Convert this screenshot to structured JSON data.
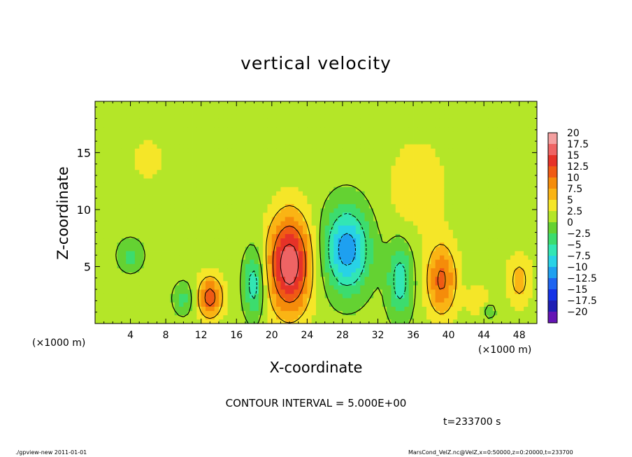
{
  "title": "vertical velocity",
  "contour_interval": "CONTOUR INTERVAL = 5.000E+00",
  "time_label": "t=233700 s",
  "footer": {
    "left": "./gpview-new  2011-01-01",
    "right": "MarsCond_VelZ.nc@VelZ,x=0:50000,z=0:20000,t=233700"
  },
  "chart_data": {
    "type": "heatmap",
    "title": "vertical velocity",
    "xlabel": "X-coordinate",
    "ylabel": "Z-coordinate",
    "x_unit": "(×1000 m)",
    "xlim": [
      0,
      50
    ],
    "ylim": [
      0,
      19.5
    ],
    "x_ticks": [
      4,
      8,
      12,
      16,
      20,
      24,
      28,
      32,
      36,
      40,
      44,
      48
    ],
    "y_ticks": [
      5,
      10,
      15
    ],
    "contour_interval": 5,
    "colorbar": {
      "labels": [
        "20",
        "17.5",
        "15",
        "12.5",
        "10",
        "7.5",
        "5",
        "2.5",
        "0",
        "−2.5",
        "−5",
        "−7.5",
        "−10",
        "−12.5",
        "−15",
        "−17.5",
        "−20"
      ],
      "colors": [
        "#f4a0a0",
        "#ee6464",
        "#e63228",
        "#f05a14",
        "#f58c0a",
        "#fab414",
        "#f5e628",
        "#b4e628",
        "#64d232",
        "#3cdc6e",
        "#32e6b4",
        "#28d2e6",
        "#1ea0f0",
        "#1e64f0",
        "#1432e6",
        "#1e1eb4",
        "#6414b4"
      ]
    },
    "background_value": 1.2,
    "features": [
      {
        "x": 22.0,
        "z": 5.2,
        "amp": 16.5,
        "sx": 1.7,
        "sz": 3.0
      },
      {
        "x": 13.0,
        "z": 2.3,
        "amp": 10.5,
        "sx": 1.0,
        "sz": 1.3
      },
      {
        "x": 39.2,
        "z": 3.8,
        "amp": 9.5,
        "sx": 1.2,
        "sz": 2.2
      },
      {
        "x": 48.0,
        "z": 3.8,
        "amp": 5.0,
        "sx": 1.0,
        "sz": 1.6
      },
      {
        "x": 43.5,
        "z": 2.0,
        "amp": 3.5,
        "sx": 1.0,
        "sz": 1.0
      },
      {
        "x": 28.5,
        "z": 6.5,
        "amp": -13.0,
        "sx": 1.8,
        "sz": 2.6
      },
      {
        "x": 34.5,
        "z": 3.8,
        "amp": -8.0,
        "sx": 1.0,
        "sz": 2.3
      },
      {
        "x": 18.0,
        "z": 3.5,
        "amp": -8.5,
        "sx": 0.8,
        "sz": 2.0
      },
      {
        "x": 10.0,
        "z": 2.2,
        "amp": -4.5,
        "sx": 0.8,
        "sz": 1.0
      },
      {
        "x": 4.0,
        "z": 6.0,
        "amp": -4.5,
        "sx": 1.0,
        "sz": 1.0
      },
      {
        "x": 44.5,
        "z": 1.2,
        "amp": -4.0,
        "sx": 0.6,
        "sz": 0.6
      },
      {
        "x": 6.0,
        "z": 14.5,
        "amp": 1.5,
        "sx": 3.0,
        "sz": 3.0
      },
      {
        "x": 36.5,
        "z": 12.0,
        "amp": 3.0,
        "sx": 2.5,
        "sz": 3.0
      }
    ]
  }
}
